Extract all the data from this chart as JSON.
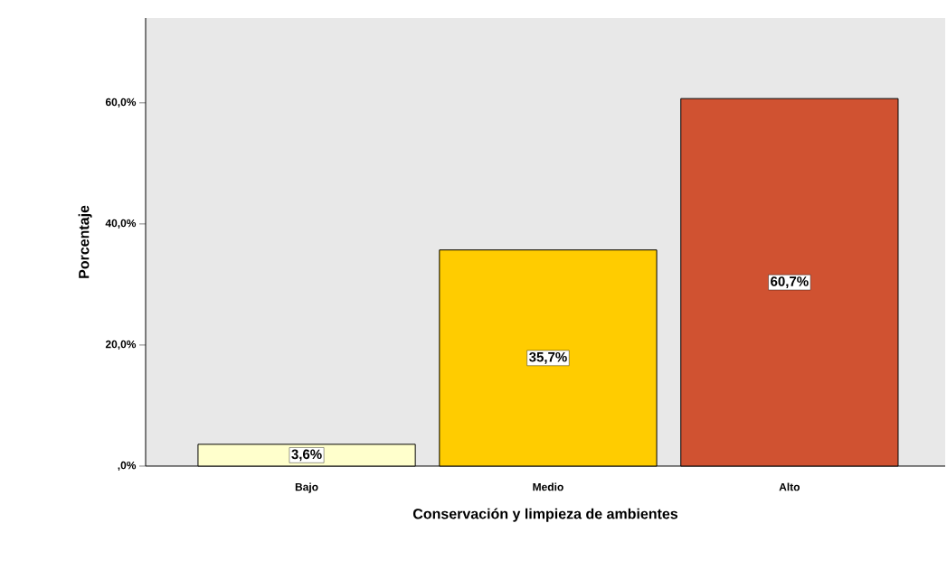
{
  "chart_data": {
    "type": "bar",
    "xlabel": "Conservación y limpieza de ambientes",
    "ylabel": "Porcentaje",
    "categories": [
      "Bajo",
      "Medio",
      "Alto"
    ],
    "values": [
      3.6,
      35.7,
      60.7
    ],
    "colors": [
      "#ffffcc",
      "#ffcc00",
      "#d05231"
    ],
    "value_labels": [
      "3,6%",
      "35,7%",
      "60,7%"
    ],
    "ylim": [
      0,
      74
    ],
    "yticks": [
      {
        "value": 0,
        "label": ",0%"
      },
      {
        "value": 20,
        "label": "20,0%"
      },
      {
        "value": 40,
        "label": "40,0%"
      },
      {
        "value": 60,
        "label": "60,0%"
      }
    ],
    "grid": false
  }
}
